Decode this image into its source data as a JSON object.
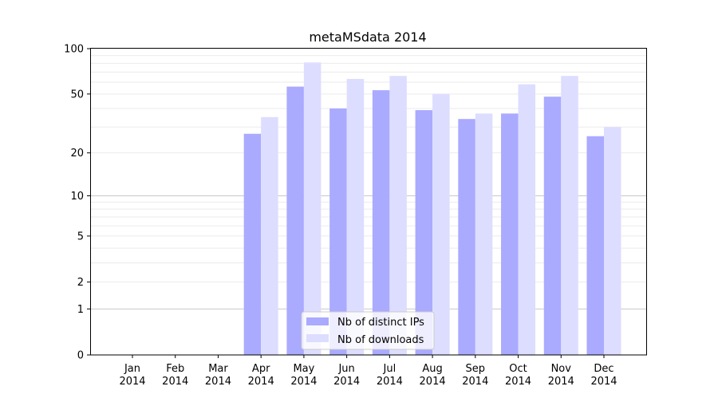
{
  "chart_data": {
    "type": "bar",
    "title": "metaMSdata 2014",
    "xlabel": "",
    "ylabel": "",
    "yscale": "log10(1+y)",
    "ylim": [
      0,
      100
    ],
    "yticks": [
      0,
      1,
      2,
      5,
      10,
      20,
      50,
      100
    ],
    "grid": true,
    "legend_placement": "bottom-center",
    "categories": [
      "Jan\n2014",
      "Feb\n2014",
      "Mar\n2014",
      "Apr\n2014",
      "May\n2014",
      "Jun\n2014",
      "Jul\n2014",
      "Aug\n2014",
      "Sep\n2014",
      "Oct\n2014",
      "Nov\n2014",
      "Dec\n2014"
    ],
    "series": [
      {
        "name": "Nb of distinct IPs",
        "color": "#aaaaff",
        "values": [
          0,
          0,
          0,
          27,
          56,
          40,
          53,
          39,
          34,
          37,
          48,
          26
        ]
      },
      {
        "name": "Nb of downloads",
        "color": "#ddddff",
        "values": [
          0,
          0,
          0,
          35,
          81,
          63,
          66,
          50,
          37,
          58,
          66,
          30
        ]
      }
    ]
  }
}
